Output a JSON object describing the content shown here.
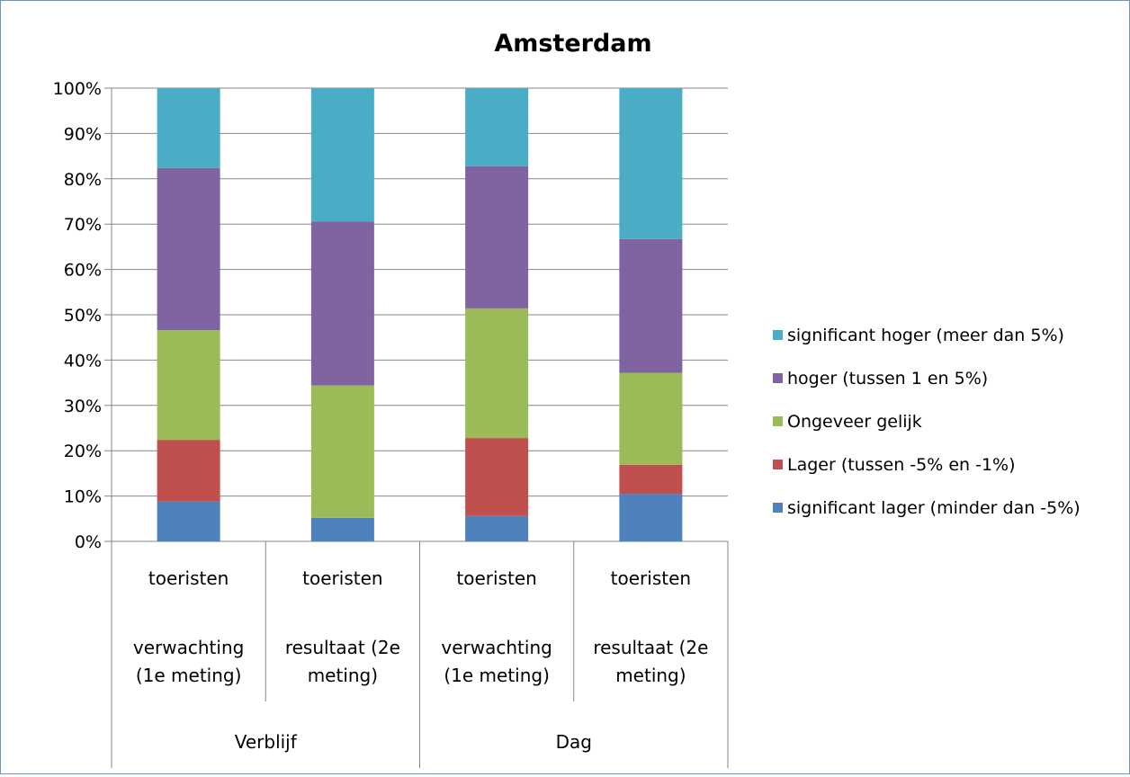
{
  "chart_data": {
    "type": "bar",
    "stacked": true,
    "percent": true,
    "title": "Amsterdam",
    "ylim": [
      0,
      100
    ],
    "y_ticks": [
      "0%",
      "10%",
      "20%",
      "30%",
      "40%",
      "50%",
      "60%",
      "70%",
      "80%",
      "90%",
      "100%"
    ],
    "grid": true,
    "legend_position": "right",
    "categories": [
      {
        "line1": "toeristen",
        "line2": "verwachting",
        "line3": "(1e meting)",
        "group": "Verblijf"
      },
      {
        "line1": "toeristen",
        "line2": "resultaat (2e",
        "line3": "meting)",
        "group": "Verblijf"
      },
      {
        "line1": "toeristen",
        "line2": "verwachting",
        "line3": "(1e meting)",
        "group": "Dag"
      },
      {
        "line1": "toeristen",
        "line2": "resultaat (2e",
        "line3": "meting)",
        "group": "Dag"
      }
    ],
    "groups": [
      "Verblijf",
      "Dag"
    ],
    "series": [
      {
        "name": "significant lager (minder dan -5%)",
        "color": "#4f81bd",
        "values": [
          8.8,
          5.2,
          5.6,
          10.5
        ]
      },
      {
        "name": "Lager (tussen -5% en -1%)",
        "color": "#c0504d",
        "values": [
          13.6,
          0.0,
          17.2,
          6.4
        ]
      },
      {
        "name": "Ongeveer gelijk",
        "color": "#9bbb59",
        "values": [
          24.2,
          29.2,
          28.6,
          20.3
        ]
      },
      {
        "name": "hoger (tussen 1 en 5%)",
        "color": "#8064a2",
        "values": [
          35.8,
          36.2,
          31.4,
          29.5
        ]
      },
      {
        "name": "significant hoger (meer dan 5%)",
        "color": "#4bacc6",
        "values": [
          17.6,
          29.4,
          17.2,
          33.3
        ]
      }
    ]
  }
}
